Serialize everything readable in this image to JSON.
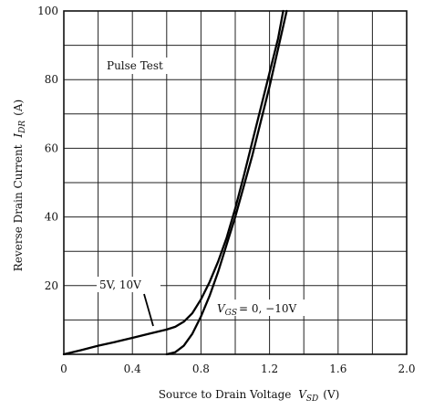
{
  "chart_data": {
    "type": "line",
    "xlabel": "Source to Drain Voltage",
    "xlabel_symbol": "V",
    "xlabel_subscript": "SD",
    "xlabel_unit": "(V)",
    "ylabel": "Reverse Drain Current",
    "ylabel_symbol": "I",
    "ylabel_subscript": "DR",
    "ylabel_unit": "(A)",
    "xlim": [
      0,
      2.0
    ],
    "ylim": [
      0,
      100
    ],
    "x_ticks": [
      "0",
      "0.4",
      "0.8",
      "1.2",
      "1.6",
      "2.0"
    ],
    "y_ticks": [
      "20",
      "40",
      "60",
      "80",
      "100"
    ],
    "grid": true,
    "grid_x_divisions": 10,
    "grid_y_divisions": 10,
    "series": [
      {
        "name": "5V, 10V",
        "x": [
          0.0,
          0.1,
          0.2,
          0.3,
          0.4,
          0.5,
          0.6,
          0.65,
          0.7,
          0.75,
          0.8,
          0.85,
          0.9,
          0.95,
          1.0,
          1.05,
          1.1,
          1.15,
          1.2,
          1.25,
          1.28
        ],
        "y": [
          0.0,
          1.2,
          2.5,
          3.6,
          4.8,
          6.0,
          7.2,
          8.0,
          9.5,
          12.0,
          16.0,
          21.0,
          27.0,
          34.0,
          42.5,
          52.0,
          62.0,
          72.0,
          82.0,
          92.0,
          100.0
        ]
      },
      {
        "name": "VGS = 0, −10V",
        "x": [
          0.6,
          0.65,
          0.7,
          0.75,
          0.8,
          0.85,
          0.9,
          0.95,
          1.0,
          1.05,
          1.1,
          1.15,
          1.2,
          1.25,
          1.3
        ],
        "y": [
          0.0,
          0.6,
          2.5,
          6.0,
          11.0,
          17.0,
          24.0,
          32.0,
          40.0,
          49.0,
          58.0,
          68.0,
          78.0,
          89.0,
          100.0
        ]
      }
    ],
    "annotations": {
      "pulse_test": "Pulse Test",
      "label_5v10v": "5V, 10V",
      "label_vgs_symbol": "V",
      "label_vgs_sub": "GS",
      "label_vgs_value": "= 0,  −10V"
    }
  }
}
